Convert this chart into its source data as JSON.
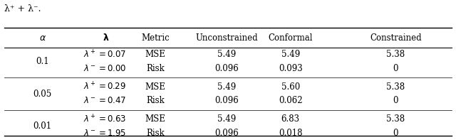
{
  "caption": "λ⁺ + λ⁻.",
  "col_headers": [
    "α",
    "λ",
    "Metric",
    "Unconstrained",
    "Conformal",
    "Constrained"
  ],
  "rows": [
    [
      "0.1",
      "λ⁺ = 0.07",
      "MSE",
      "5.49",
      "5.49",
      "5.38"
    ],
    [
      "",
      "λ⁻ = 0.00",
      "Risk",
      "0.096",
      "0.093",
      "0"
    ],
    [
      "0.05",
      "λ⁺ = 0.29",
      "MSE",
      "5.49",
      "5.60",
      "5.38"
    ],
    [
      "",
      "λ⁻ = 0.47",
      "Risk",
      "0.096",
      "0.062",
      "0"
    ],
    [
      "0.01",
      "λ⁺ = 0.63",
      "MSE",
      "5.49",
      "6.83",
      "5.38"
    ],
    [
      "",
      "λ⁻ = 1.95",
      "Risk",
      "0.096",
      "0.018",
      "0"
    ]
  ],
  "group_separators": [
    2,
    4
  ],
  "col_alignments": [
    "center",
    "left",
    "left",
    "center",
    "center",
    "center"
  ],
  "alpha_row_spans": [
    0,
    2,
    4
  ],
  "figsize": [
    6.4,
    1.97
  ],
  "dpi": 100
}
